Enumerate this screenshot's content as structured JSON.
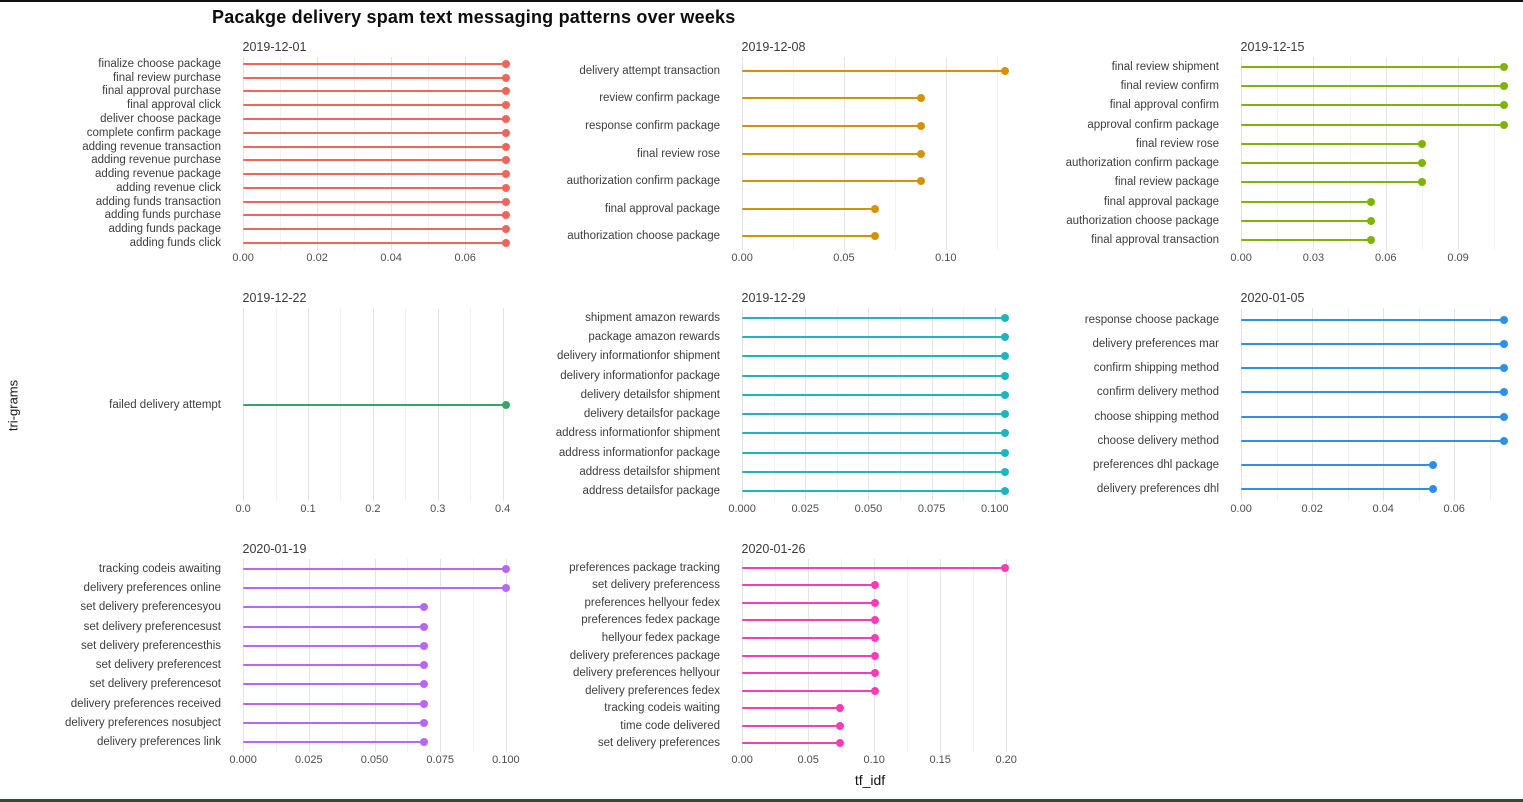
{
  "title": "Pacakge delivery spam text messaging patterns over weeks",
  "x_axis_label": "tf_idf",
  "y_axis_label": "tri-grams",
  "chart_data": {
    "type": "bar",
    "style": "lollipop",
    "orientation": "horizontal",
    "xlabel": "tf_idf",
    "ylabel": "tri-grams",
    "grid": "vertical-major-and-minor",
    "legend": "none",
    "facets": [
      {
        "title": "2019-12-01",
        "color": "#ED665C",
        "tick_values": [
          0,
          0.02,
          0.04,
          0.06
        ],
        "tick_labels": [
          "0.00",
          "0.02",
          "0.04",
          "0.06"
        ],
        "minor_ticks": [
          0.01,
          0.03,
          0.05,
          0.07
        ],
        "categories": [
          "finalize choose package",
          "final review purchase",
          "final approval purchase",
          "final approval click",
          "deliver choose package",
          "complete confirm package",
          "adding revenue transaction",
          "adding revenue purchase",
          "adding revenue package",
          "adding revenue click",
          "adding funds transaction",
          "adding funds purchase",
          "adding funds package",
          "adding funds click"
        ],
        "values": [
          0.071,
          0.071,
          0.071,
          0.071,
          0.071,
          0.071,
          0.071,
          0.071,
          0.071,
          0.071,
          0.071,
          0.071,
          0.071,
          0.071
        ]
      },
      {
        "title": "2019-12-08",
        "color": "#D4920B",
        "tick_values": [
          0,
          0.05,
          0.1
        ],
        "tick_labels": [
          "0.00",
          "0.05",
          "0.10"
        ],
        "minor_ticks": [
          0.025,
          0.075,
          0.125
        ],
        "categories": [
          "delivery attempt transaction",
          "review confirm package",
          "response confirm package",
          "final review rose",
          "authorization confirm package",
          "final approval package",
          "authorization choose package"
        ],
        "values": [
          0.129,
          0.088,
          0.088,
          0.088,
          0.088,
          0.065,
          0.065
        ]
      },
      {
        "title": "2019-12-15",
        "color": "#7FB306",
        "tick_values": [
          0,
          0.03,
          0.06,
          0.09
        ],
        "tick_labels": [
          "0.00",
          "0.03",
          "0.06",
          "0.09"
        ],
        "minor_ticks": [
          0.015,
          0.045,
          0.075,
          0.105
        ],
        "categories": [
          "final review shipment",
          "final review confirm",
          "final approval confirm",
          "approval confirm package",
          "final review rose",
          "authorization confirm package",
          "final review package",
          "final approval package",
          "authorization choose package",
          "final approval transaction"
        ],
        "values": [
          0.109,
          0.109,
          0.109,
          0.109,
          0.075,
          0.075,
          0.075,
          0.054,
          0.054,
          0.054
        ]
      },
      {
        "title": "2019-12-22",
        "color": "#34A765",
        "tick_values": [
          0,
          0.1,
          0.2,
          0.3,
          0.4
        ],
        "tick_labels": [
          "0.0",
          "0.1",
          "0.2",
          "0.3",
          "0.4"
        ],
        "minor_ticks": [
          0.05,
          0.15,
          0.25,
          0.35
        ],
        "categories": [
          "failed delivery attempt"
        ],
        "values": [
          0.405
        ]
      },
      {
        "title": "2019-12-29",
        "color": "#1FB5C0",
        "tick_values": [
          0,
          0.025,
          0.05,
          0.075,
          0.1
        ],
        "tick_labels": [
          "0.000",
          "0.025",
          "0.050",
          "0.075",
          "0.100"
        ],
        "minor_ticks": [
          0.0125,
          0.0375,
          0.0625,
          0.0875
        ],
        "categories": [
          "shipment amazon rewards",
          "package amazon rewards",
          "delivery informationfor shipment",
          "delivery informationfor package",
          "delivery detailsfor shipment",
          "delivery detailsfor package",
          "address informationfor shipment",
          "address informationfor package",
          "address detailsfor shipment",
          "address detailsfor package"
        ],
        "values": [
          0.104,
          0.104,
          0.104,
          0.104,
          0.104,
          0.104,
          0.104,
          0.104,
          0.104,
          0.104
        ]
      },
      {
        "title": "2020-01-05",
        "color": "#2D8FE8",
        "tick_values": [
          0,
          0.02,
          0.04,
          0.06
        ],
        "tick_labels": [
          "0.00",
          "0.02",
          "0.04",
          "0.06"
        ],
        "minor_ticks": [
          0.01,
          0.03,
          0.05,
          0.07
        ],
        "categories": [
          "response choose package",
          "delivery preferences mar",
          "confirm shipping method",
          "confirm delivery method",
          "choose shipping method",
          "choose delivery method",
          "preferences dhl package",
          "delivery preferences dhl"
        ],
        "values": [
          0.074,
          0.074,
          0.074,
          0.074,
          0.074,
          0.074,
          0.054,
          0.054
        ]
      },
      {
        "title": "2020-01-19",
        "color": "#B668F2",
        "tick_values": [
          0,
          0.025,
          0.05,
          0.075,
          0.1
        ],
        "tick_labels": [
          "0.000",
          "0.025",
          "0.050",
          "0.075",
          "0.100"
        ],
        "minor_ticks": [
          0.0125,
          0.0375,
          0.0625,
          0.0875
        ],
        "categories": [
          "tracking codeis awaiting",
          "delivery preferences online",
          "set delivery preferencesyou",
          "set delivery preferencesust",
          "set delivery preferencesthis",
          "set delivery preferencest",
          "set delivery preferencesot",
          "delivery preferences received",
          "delivery preferences nosubject",
          "delivery preferences link"
        ],
        "values": [
          0.1,
          0.1,
          0.069,
          0.069,
          0.069,
          0.069,
          0.069,
          0.069,
          0.069,
          0.069
        ]
      },
      {
        "title": "2020-01-26",
        "color": "#F53DB5",
        "tick_values": [
          0,
          0.05,
          0.1,
          0.15,
          0.2
        ],
        "tick_labels": [
          "0.00",
          "0.05",
          "0.10",
          "0.15",
          "0.20"
        ],
        "minor_ticks": [
          0.025,
          0.075,
          0.125,
          0.175
        ],
        "categories": [
          "preferences package tracking",
          "set delivery preferencess",
          "preferences hellyour fedex",
          "preferences fedex package",
          "hellyour fedex package",
          "delivery preferences package",
          "delivery preferences hellyour",
          "delivery preferences fedex",
          "tracking codeis waiting",
          "time code delivered",
          "set delivery preferences"
        ],
        "values": [
          0.199,
          0.101,
          0.101,
          0.101,
          0.101,
          0.101,
          0.101,
          0.101,
          0.074,
          0.074,
          0.074
        ]
      }
    ]
  }
}
